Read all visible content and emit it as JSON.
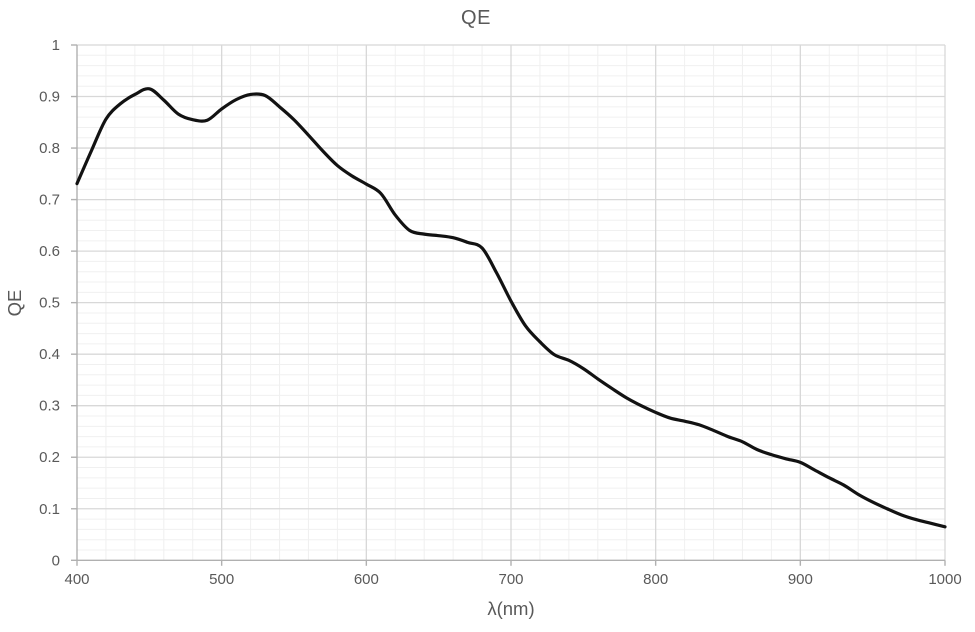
{
  "chart_data": {
    "type": "line",
    "title": "QE",
    "xlabel": "λ(nm)",
    "ylabel": "QE",
    "xlim": [
      400,
      1000
    ],
    "ylim": [
      0,
      1
    ],
    "x_ticks": [
      400,
      500,
      600,
      700,
      800,
      900,
      1000
    ],
    "x_tick_labels": [
      "400",
      "500",
      "600",
      "700",
      "800",
      "900",
      "1000"
    ],
    "y_ticks": [
      0,
      0.1,
      0.2,
      0.3,
      0.4,
      0.5,
      0.6,
      0.7,
      0.8,
      0.9,
      1
    ],
    "y_tick_labels": [
      "0",
      "0.1",
      "0.2",
      "0.3",
      "0.4",
      "0.5",
      "0.6",
      "0.7",
      "0.8",
      "0.9",
      "1"
    ],
    "x_minor_step": 20,
    "y_minor_step": 0.02,
    "grid": {
      "major": true,
      "minor": true
    },
    "legend": {
      "visible": false
    },
    "style": {
      "line_color": "#121212",
      "line_width": 3.2,
      "text_color": "#595959",
      "major_grid_color": "#d8d8d8",
      "minor_grid_color": "#f0f0f0",
      "axis_color": "#b0b0b0",
      "background": "#ffffff"
    },
    "series": [
      {
        "name": "QE",
        "x": [
          400,
          410,
          420,
          430,
          440,
          450,
          460,
          470,
          480,
          490,
          500,
          510,
          520,
          530,
          540,
          550,
          560,
          570,
          580,
          590,
          600,
          610,
          620,
          630,
          640,
          650,
          660,
          670,
          680,
          690,
          700,
          710,
          720,
          730,
          740,
          750,
          760,
          770,
          780,
          790,
          800,
          810,
          820,
          830,
          840,
          850,
          860,
          870,
          880,
          890,
          900,
          910,
          920,
          930,
          940,
          950,
          960,
          970,
          980,
          990,
          1000
        ],
        "y": [
          0.731,
          0.795,
          0.856,
          0.886,
          0.904,
          0.915,
          0.893,
          0.866,
          0.855,
          0.854,
          0.876,
          0.894,
          0.904,
          0.902,
          0.88,
          0.855,
          0.825,
          0.794,
          0.766,
          0.746,
          0.73,
          0.712,
          0.67,
          0.64,
          0.633,
          0.63,
          0.626,
          0.617,
          0.606,
          0.558,
          0.503,
          0.455,
          0.424,
          0.399,
          0.388,
          0.372,
          0.352,
          0.333,
          0.315,
          0.3,
          0.287,
          0.276,
          0.27,
          0.263,
          0.252,
          0.24,
          0.23,
          0.215,
          0.205,
          0.197,
          0.19,
          0.175,
          0.16,
          0.146,
          0.128,
          0.113,
          0.1,
          0.088,
          0.079,
          0.072,
          0.065
        ]
      }
    ]
  }
}
